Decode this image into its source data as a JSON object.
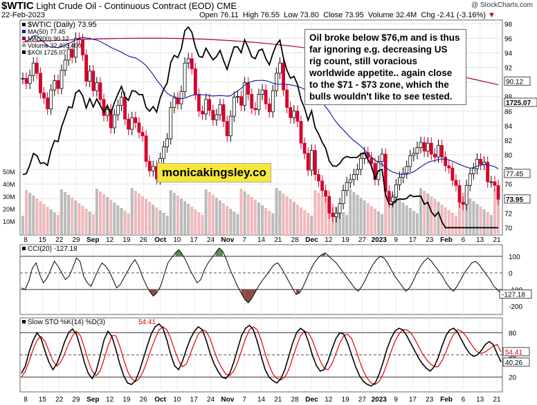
{
  "header": {
    "symbol": "$WTIC",
    "name": "Light Crude Oil - Continuous Contract (EOD)",
    "exchange": "CME",
    "date": "22-Feb-2023",
    "open_label": "Open",
    "open": "76.11",
    "high_label": "High",
    "high": "76.55",
    "low_label": "Low",
    "low": "73.80",
    "close_label": "Close",
    "close": "73.95",
    "volume_label": "Volume",
    "volume": "32.4M",
    "chg_label": "Chg",
    "chg": "-2.41 (-3.16%)",
    "copyright": "@ StockCharts.com"
  },
  "annotation": "Oil broke below $76,m and is thus far ignoring e.g. decreasing US rig count, still voracious worldwide appetite.. again close to the $71 - $73 zone, which the bulls wouldn't like to see tested.",
  "watermark": "monicakingsley.co",
  "colors": {
    "up": "#000000",
    "down": "#d6002a",
    "ma50": "#1f1fa8",
    "ma200": "#a3002a",
    "xoi": "#000000",
    "volume": "#bbbbbb",
    "volume_down": "#f0b8bc",
    "cci_fill_pos": "#5a8a5a",
    "cci_fill_neg": "#8a4a44",
    "sto_k": "#000000",
    "sto_d": "#e00000"
  },
  "chart_data": [
    {
      "type": "candlestick",
      "legend": [
        "$WTIC (Daily) 73.95",
        "MA(50) 77.45",
        "MA(200) 90.12",
        "Volume 32,403,400",
        "$XOI 1725.07"
      ],
      "y_ticks": [
        70,
        72,
        74,
        76,
        78,
        80,
        82,
        84,
        86,
        88,
        90,
        92,
        94,
        96,
        98
      ],
      "ylim": [
        69,
        98.5
      ],
      "volume_ticks": [
        "10M",
        "20M",
        "30M",
        "40M",
        "50M"
      ],
      "x_labels": [
        "8",
        "15",
        "22",
        "29",
        "Sep",
        "12",
        "19",
        "26",
        "Oct",
        "10",
        "17",
        "24",
        "Nov",
        "7",
        "14",
        "21",
        "28",
        "Dec",
        "12",
        "19",
        "27",
        "2023",
        "9",
        "17",
        "23",
        "Feb",
        "6",
        "13",
        "21"
      ],
      "closes": [
        90.5,
        89.8,
        90.9,
        92.6,
        91.2,
        88.5,
        87.8,
        86.3,
        88.9,
        90.2,
        89.1,
        91.6,
        93.0,
        94.5,
        93.4,
        96.0,
        95.8,
        93.7,
        90.1,
        91.5,
        88.8,
        89.9,
        87.6,
        85.4,
        86.2,
        83.7,
        85.5,
        86.8,
        87.9,
        84.9,
        83.5,
        85.1,
        84.4,
        83.1,
        82.6,
        79.1,
        77.8,
        78.4,
        76.7,
        79.5,
        81.1,
        82.2,
        86.5,
        87.8,
        87.0,
        88.7,
        92.6,
        93.2,
        91.8,
        88.3,
        86.0,
        85.6,
        87.6,
        86.1,
        84.8,
        85.5,
        86.9,
        84.6,
        82.6,
        85.3,
        87.9,
        88.0,
        86.8,
        89.9,
        88.3,
        86.4,
        86.2,
        88.3,
        88.9,
        87.0,
        85.9,
        88.8,
        91.2,
        92.6,
        88.9,
        86.5,
        85.1,
        86.0,
        84.6,
        81.6,
        80.2,
        77.9,
        80.6,
        77.3,
        76.4,
        75.1,
        74.3,
        72.0,
        71.5,
        72.0,
        73.3,
        75.1,
        76.2,
        76.6,
        77.3,
        78.0,
        79.5,
        80.3,
        79.6,
        78.8,
        76.6,
        79.1,
        80.1,
        75.0,
        73.6,
        74.2,
        75.9,
        76.9,
        77.5,
        78.4,
        79.9,
        80.2,
        81.0,
        81.7,
        80.5,
        81.6,
        80.1,
        79.7,
        81.3,
        79.7,
        78.5,
        78.2,
        76.5,
        75.8,
        73.5,
        73.2,
        75.8,
        77.4,
        78.1,
        79.4,
        78.7,
        79.0,
        76.3,
        76.3,
        75.8,
        73.9
      ],
      "ma50_endpoints": [
        96.0,
        77.45
      ],
      "ma200_endpoints": [
        95.3,
        90.12
      ],
      "xoi_range": [
        1225,
        1725.07
      ],
      "xoi_last": "1725.07"
    },
    {
      "type": "line",
      "name": "CCI(20) -127.18",
      "y_ticks": [
        100,
        0,
        -100,
        -200
      ],
      "ylim": [
        -250,
        170
      ],
      "last": "-127.18",
      "values": [
        -90,
        -100,
        -50,
        30,
        60,
        -10,
        -60,
        -30,
        20,
        70,
        40,
        0,
        -40,
        -20,
        30,
        90,
        70,
        -20,
        -60,
        -80,
        -30,
        20,
        60,
        40,
        10,
        -40,
        -90,
        -70,
        -30,
        10,
        50,
        80,
        40,
        -20,
        -70,
        -110,
        -140,
        -120,
        -80,
        -10,
        60,
        90,
        120,
        140,
        110,
        70,
        20,
        -20,
        -60,
        -40,
        20,
        60,
        90,
        120,
        150,
        130,
        80,
        20,
        -30,
        -80,
        -120,
        -160,
        -180,
        -150,
        -110,
        -70,
        -40,
        -10,
        20,
        50,
        60,
        30,
        -10,
        -50,
        -90,
        -130,
        -120,
        -80,
        -30,
        20,
        60,
        90,
        110,
        120,
        100,
        80,
        60,
        30,
        0,
        -30,
        -60,
        -90,
        -110,
        -80,
        -40,
        10,
        50,
        80,
        100,
        90,
        60,
        20,
        -20,
        -50,
        -80,
        -110,
        -90,
        -50,
        0,
        40,
        70,
        90,
        70,
        40,
        10,
        -20,
        -60,
        -90,
        -110,
        -80,
        -40,
        0,
        30,
        60,
        70,
        50,
        20,
        -10,
        -40,
        -80,
        -100,
        -127.18
      ]
    },
    {
      "type": "line",
      "name": "Slow STO %K(14) %D(3)",
      "k_label": "40.26",
      "d_label": "54.41",
      "y_ticks": [
        80,
        50,
        20
      ],
      "ylim": [
        0,
        100
      ],
      "k_values": [
        25,
        35,
        55,
        70,
        80,
        72,
        55,
        40,
        30,
        38,
        52,
        68,
        80,
        85,
        78,
        60,
        40,
        25,
        18,
        28,
        48,
        70,
        82,
        75,
        58,
        38,
        22,
        12,
        10,
        15,
        28,
        45,
        62,
        78,
        88,
        92,
        86,
        70,
        50,
        35,
        30,
        42,
        58,
        72,
        82,
        88,
        84,
        70,
        52,
        38,
        28,
        20,
        18,
        25,
        40,
        58,
        76,
        86,
        90,
        84,
        68,
        48,
        30,
        20,
        15,
        12,
        18,
        30,
        48,
        66,
        80,
        86,
        82,
        68,
        50,
        36,
        28,
        30,
        42,
        58,
        72,
        80,
        78,
        66,
        50,
        34,
        22,
        14,
        10,
        8,
        12,
        24,
        40,
        58,
        72,
        82,
        86,
        84,
        76,
        66,
        56,
        46,
        38,
        32,
        28,
        34,
        46,
        62,
        76,
        84,
        86,
        80,
        70,
        60,
        52,
        48,
        50,
        56,
        64,
        68,
        64,
        52,
        40.26
      ],
      "d_values": [
        20,
        28,
        42,
        58,
        70,
        75,
        68,
        55,
        42,
        35,
        40,
        52,
        65,
        76,
        82,
        76,
        60,
        42,
        28,
        22,
        28,
        44,
        62,
        76,
        76,
        62,
        44,
        28,
        18,
        14,
        18,
        28,
        42,
        58,
        72,
        84,
        88,
        84,
        72,
        56,
        42,
        34,
        38,
        52,
        66,
        78,
        84,
        82,
        72,
        56,
        42,
        32,
        24,
        22,
        28,
        40,
        56,
        72,
        84,
        88,
        84,
        70,
        52,
        36,
        24,
        18,
        16,
        20,
        30,
        46,
        62,
        76,
        82,
        80,
        70,
        56,
        42,
        32,
        30,
        38,
        52,
        66,
        76,
        78,
        72,
        58,
        42,
        28,
        18,
        12,
        10,
        14,
        24,
        38,
        54,
        68,
        78,
        84,
        84,
        80,
        72,
        62,
        52,
        44,
        38,
        34,
        34,
        42,
        54,
        68,
        78,
        84,
        82,
        76,
        68,
        60,
        54,
        52,
        54,
        58,
        62,
        64,
        54.41
      ]
    }
  ]
}
